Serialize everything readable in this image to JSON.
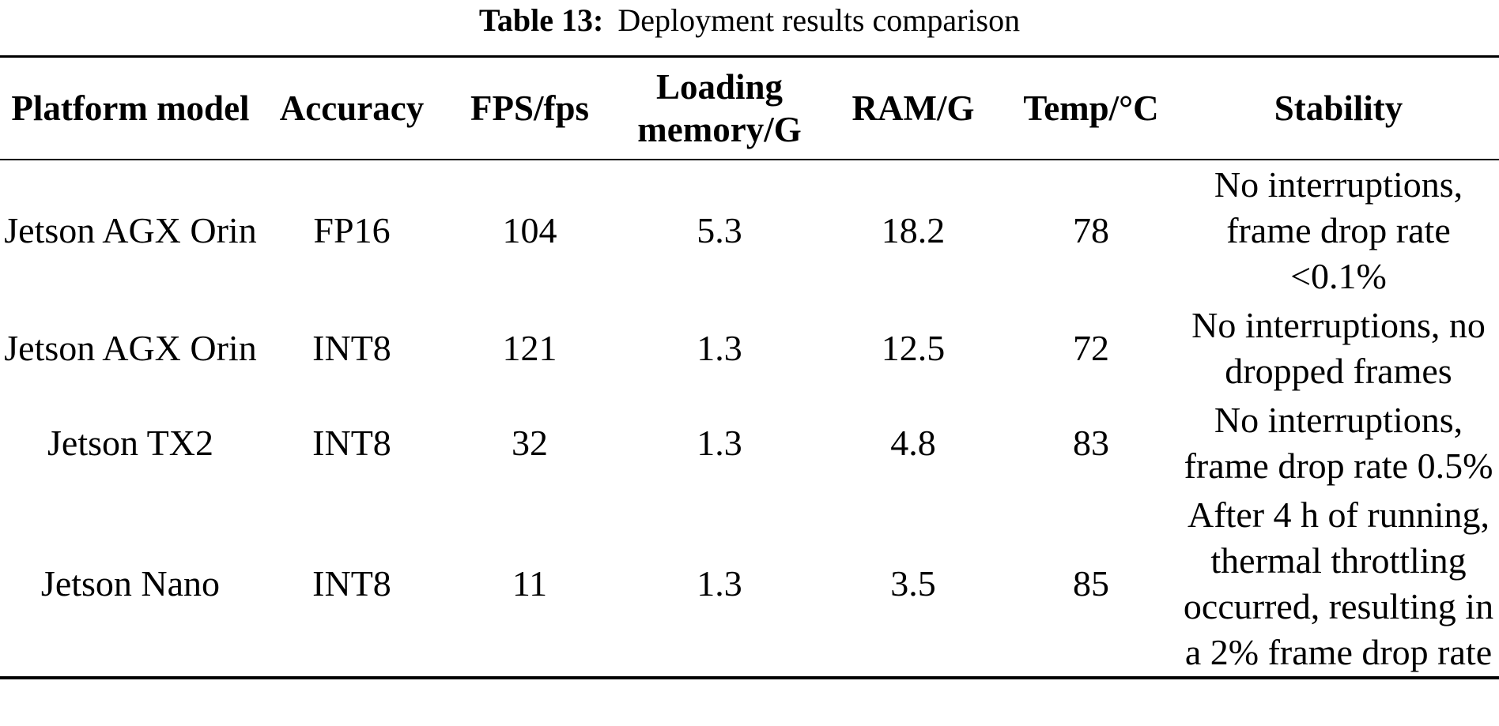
{
  "caption": {
    "label": "Table 13:",
    "text": "Deployment results comparison"
  },
  "table": {
    "columns": [
      "Platform model",
      "Accuracy",
      "FPS/fps",
      "Loading memory/G",
      "RAM/G",
      "Temp/°C",
      "Stability"
    ],
    "rows": [
      {
        "platform": "Jetson AGX Orin",
        "accuracy": "FP16",
        "fps": "104",
        "loading_memory": "5.3",
        "ram": "18.2",
        "temp": "78",
        "stability": "No interruptions, frame drop rate <0.1%"
      },
      {
        "platform": "Jetson AGX Orin",
        "accuracy": "INT8",
        "fps": "121",
        "loading_memory": "1.3",
        "ram": "12.5",
        "temp": "72",
        "stability": "No interruptions, no dropped frames"
      },
      {
        "platform": "Jetson TX2",
        "accuracy": "INT8",
        "fps": "32",
        "loading_memory": "1.3",
        "ram": "4.8",
        "temp": "83",
        "stability": "No interruptions, frame drop rate 0.5%"
      },
      {
        "platform": "Jetson Nano",
        "accuracy": "INT8",
        "fps": "11",
        "loading_memory": "1.3",
        "ram": "3.5",
        "temp": "85",
        "stability": "After 4 h of running, thermal throttling occurred, resulting in a 2% frame drop rate"
      }
    ]
  }
}
